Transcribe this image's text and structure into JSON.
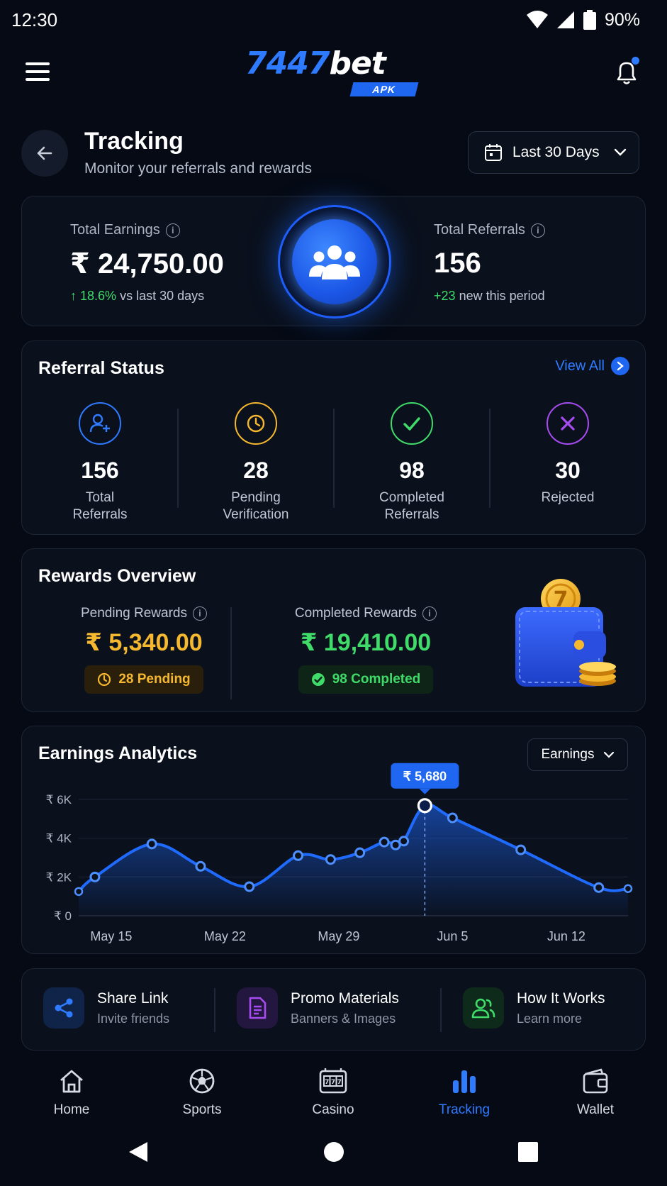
{
  "status_bar": {
    "time": "12:30",
    "battery": "90%"
  },
  "header": {
    "logo_number": "7447",
    "logo_word": "bet",
    "logo_tag": "APK"
  },
  "page": {
    "title": "Tracking",
    "subtitle": "Monitor your referrals and rewards",
    "date_range": "Last 30 Days"
  },
  "summary": {
    "earnings_label": "Total Earnings",
    "earnings_value": "₹ 24,750.00",
    "earnings_delta": "18.6%",
    "earnings_delta_text": "vs last 30 days",
    "referrals_label": "Total Referrals",
    "referrals_value": "156",
    "referrals_delta": "+23",
    "referrals_delta_text": "new this period"
  },
  "referral_status": {
    "title": "Referral Status",
    "view_all": "View All",
    "stats": [
      {
        "value": "156",
        "label1": "Total",
        "label2": "Referrals",
        "color": "#2f7bff",
        "icon": "user-plus-icon"
      },
      {
        "value": "28",
        "label1": "Pending",
        "label2": "Verification",
        "color": "#f5b82e",
        "icon": "clock-icon"
      },
      {
        "value": "98",
        "label1": "Completed",
        "label2": "Referrals",
        "color": "#3fdc6a",
        "icon": "check-icon"
      },
      {
        "value": "30",
        "label1": "Rejected",
        "label2": "",
        "color": "#a64cf0",
        "icon": "x-icon"
      }
    ]
  },
  "rewards": {
    "title": "Rewards Overview",
    "pending_label": "Pending Rewards",
    "pending_value": "₹ 5,340.00",
    "pending_pill": "28 Pending",
    "completed_label": "Completed Rewards",
    "completed_value": "₹ 19,410.00",
    "completed_pill": "98 Completed",
    "coin_digit": "7",
    "pending_color": "#f5b82e",
    "completed_color": "#3fdc6a"
  },
  "analytics": {
    "title": "Earnings Analytics",
    "metric": "Earnings",
    "tooltip": "₹ 5,680"
  },
  "chart_data": {
    "type": "area",
    "x_ticks": [
      "May 15",
      "May 22",
      "May 29",
      "Jun 5",
      "Jun 12"
    ],
    "y_ticks": [
      "₹ 6K",
      "₹ 4K",
      "₹ 2K",
      "₹ 0"
    ],
    "ylim": [
      0,
      6000
    ],
    "series": [
      {
        "x": [
          13.0,
          14.0,
          17.5,
          20.5,
          23.5,
          26.5,
          28.5,
          30.3,
          31.8,
          32.5,
          33.0,
          34.3,
          36.0,
          40.2,
          45.0,
          46.8
        ],
        "y": [
          1250,
          2000,
          3700,
          2550,
          1500,
          3100,
          2900,
          3250,
          3800,
          3650,
          3850,
          5680,
          5050,
          3400,
          1450,
          1400
        ]
      }
    ],
    "highlight_index": 11,
    "grid": true,
    "line_color": "#1f6bff"
  },
  "quick_actions": [
    {
      "title": "Share Link",
      "subtitle": "Invite friends",
      "icon": "share-icon",
      "color": "#2f7bff"
    },
    {
      "title": "Promo Materials",
      "subtitle": "Banners & Images",
      "icon": "document-icon",
      "color": "#a64cf0"
    },
    {
      "title": "How It Works",
      "subtitle": "Learn more",
      "icon": "users-icon",
      "color": "#3fdc6a"
    }
  ],
  "bottom_nav": [
    {
      "label": "Home",
      "icon": "home-icon"
    },
    {
      "label": "Sports",
      "icon": "soccer-ball-icon"
    },
    {
      "label": "Casino",
      "icon": "slot-machine-icon"
    },
    {
      "label": "Tracking",
      "icon": "bar-chart-icon",
      "active": true
    },
    {
      "label": "Wallet",
      "icon": "wallet-icon"
    }
  ]
}
